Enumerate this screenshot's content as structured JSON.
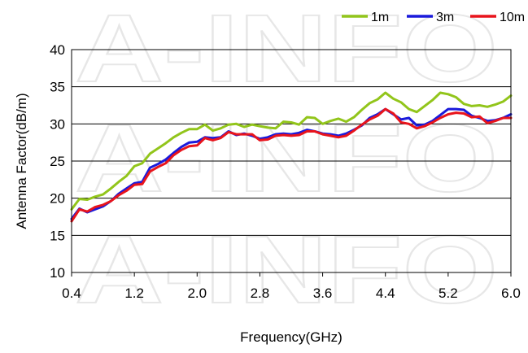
{
  "watermark": "A-INFO",
  "chart_data": {
    "type": "line",
    "xlabel": "Frequency(GHz)",
    "ylabel": "Antenna Factor(dB/m)",
    "xlim": [
      0.4,
      6.0
    ],
    "ylim": [
      10,
      40
    ],
    "x_ticks": [
      "0.4",
      "1.2",
      "2.0",
      "2.8",
      "3.6",
      "4.4",
      "5.2",
      "6.0"
    ],
    "y_ticks": [
      "10",
      "15",
      "20",
      "25",
      "30",
      "35",
      "40"
    ],
    "grid": "horizontal",
    "legend_position": "top-right",
    "series": [
      {
        "name": "1m",
        "color": "#92c51b",
        "x": [
          0.4,
          0.5,
          0.6,
          0.7,
          0.8,
          0.9,
          1.0,
          1.1,
          1.2,
          1.3,
          1.4,
          1.5,
          1.6,
          1.7,
          1.8,
          1.9,
          2.0,
          2.1,
          2.2,
          2.3,
          2.4,
          2.5,
          2.6,
          2.7,
          2.8,
          2.9,
          3.0,
          3.1,
          3.2,
          3.3,
          3.4,
          3.5,
          3.6,
          3.7,
          3.8,
          3.9,
          4.0,
          4.1,
          4.2,
          4.3,
          4.4,
          4.5,
          4.6,
          4.7,
          4.8,
          4.9,
          5.0,
          5.1,
          5.2,
          5.3,
          5.4,
          5.5,
          5.6,
          5.7,
          5.8,
          5.9,
          6.0
        ],
        "values": [
          18.5,
          19.9,
          19.8,
          20.2,
          20.5,
          21.3,
          22.2,
          23.0,
          24.3,
          24.7,
          26.0,
          26.7,
          27.4,
          28.2,
          28.8,
          29.3,
          29.3,
          29.9,
          29.1,
          29.4,
          29.9,
          30.0,
          29.6,
          29.9,
          29.7,
          29.5,
          29.4,
          30.3,
          30.2,
          29.9,
          30.9,
          30.8,
          30.0,
          30.4,
          30.7,
          30.3,
          30.9,
          31.9,
          32.8,
          33.3,
          34.2,
          33.4,
          32.9,
          32.0,
          31.6,
          32.4,
          33.2,
          34.2,
          34.0,
          33.6,
          32.7,
          32.4,
          32.5,
          32.3,
          32.6,
          33.0,
          33.8
        ]
      },
      {
        "name": "3m",
        "color": "#1a1adb",
        "x": [
          0.4,
          0.5,
          0.6,
          0.7,
          0.8,
          0.9,
          1.0,
          1.1,
          1.2,
          1.3,
          1.4,
          1.5,
          1.6,
          1.7,
          1.8,
          1.9,
          2.0,
          2.1,
          2.2,
          2.3,
          2.4,
          2.5,
          2.6,
          2.7,
          2.8,
          2.9,
          3.0,
          3.1,
          3.2,
          3.3,
          3.4,
          3.5,
          3.6,
          3.7,
          3.8,
          3.9,
          4.0,
          4.1,
          4.2,
          4.3,
          4.4,
          4.5,
          4.6,
          4.7,
          4.8,
          4.9,
          5.0,
          5.1,
          5.2,
          5.3,
          5.4,
          5.5,
          5.6,
          5.7,
          5.8,
          5.9,
          6.0
        ],
        "values": [
          17.2,
          18.6,
          18.1,
          18.5,
          18.9,
          19.6,
          20.6,
          21.3,
          22.0,
          22.2,
          24.1,
          24.6,
          25.2,
          26.1,
          26.9,
          27.5,
          27.6,
          28.2,
          28.1,
          28.2,
          29.0,
          28.5,
          28.7,
          28.4,
          28.0,
          28.2,
          28.6,
          28.7,
          28.6,
          28.8,
          29.2,
          29.0,
          28.7,
          28.6,
          28.4,
          28.7,
          29.2,
          29.8,
          30.8,
          31.3,
          32.0,
          31.3,
          30.6,
          30.8,
          29.8,
          29.9,
          30.4,
          31.2,
          32.0,
          32.0,
          31.9,
          31.1,
          30.8,
          30.4,
          30.5,
          30.8,
          31.3
        ]
      },
      {
        "name": "10m",
        "color": "#e8141c",
        "x": [
          0.4,
          0.5,
          0.6,
          0.7,
          0.8,
          0.9,
          1.0,
          1.1,
          1.2,
          1.3,
          1.4,
          1.5,
          1.6,
          1.7,
          1.8,
          1.9,
          2.0,
          2.1,
          2.2,
          2.3,
          2.4,
          2.5,
          2.6,
          2.7,
          2.8,
          2.9,
          3.0,
          3.1,
          3.2,
          3.3,
          3.4,
          3.5,
          3.6,
          3.7,
          3.8,
          3.9,
          4.0,
          4.1,
          4.2,
          4.3,
          4.4,
          4.5,
          4.6,
          4.7,
          4.8,
          4.9,
          5.0,
          5.1,
          5.2,
          5.3,
          5.4,
          5.5,
          5.6,
          5.7,
          5.8,
          5.9,
          6.0
        ],
        "values": [
          16.9,
          18.5,
          18.2,
          18.8,
          19.1,
          19.6,
          20.4,
          21.0,
          21.8,
          21.9,
          23.6,
          24.2,
          24.7,
          25.8,
          26.5,
          27.0,
          27.1,
          28.1,
          27.8,
          28.1,
          28.9,
          28.6,
          28.6,
          28.6,
          27.8,
          27.9,
          28.4,
          28.5,
          28.4,
          28.5,
          29.0,
          29.0,
          28.6,
          28.4,
          28.2,
          28.4,
          29.1,
          29.9,
          30.6,
          31.1,
          32.0,
          31.4,
          30.2,
          30.0,
          29.4,
          29.7,
          30.2,
          30.8,
          31.3,
          31.5,
          31.4,
          30.9,
          31.0,
          30.1,
          30.4,
          30.8,
          30.8
        ]
      }
    ]
  }
}
